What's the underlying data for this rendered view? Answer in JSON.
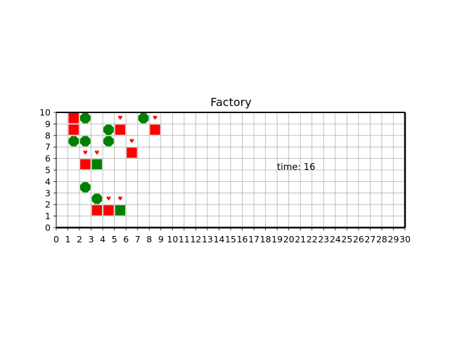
{
  "title": "Factory",
  "time_label": "time: 16",
  "grid": {
    "x_range": [
      0,
      30
    ],
    "y_range": [
      0,
      10
    ],
    "x_ticks": [
      "0",
      "1",
      "2",
      "3",
      "4",
      "5",
      "6",
      "7",
      "8",
      "9",
      "10",
      "11",
      "12",
      "13",
      "14",
      "15",
      "16",
      "17",
      "18",
      "19",
      "20",
      "21",
      "22",
      "23",
      "24",
      "25",
      "26",
      "27",
      "28",
      "29",
      "30"
    ],
    "y_ticks": [
      "0",
      "1",
      "2",
      "3",
      "4",
      "5",
      "6",
      "7",
      "8",
      "9",
      "10"
    ]
  },
  "colors": {
    "red_square": "#ff0000",
    "green_square": "#008000",
    "green_circle": "#008000",
    "heart": "#ff0000",
    "grid_line": "#b0b0b0",
    "frame": "#000000"
  },
  "red_squares": [
    {
      "x": 1.5,
      "y": 9.5
    },
    {
      "x": 1.5,
      "y": 8.5
    },
    {
      "x": 5.5,
      "y": 8.5
    },
    {
      "x": 8.5,
      "y": 8.5
    },
    {
      "x": 6.5,
      "y": 6.5
    },
    {
      "x": 2.5,
      "y": 5.5
    },
    {
      "x": 3.5,
      "y": 1.5
    },
    {
      "x": 4.5,
      "y": 1.5
    }
  ],
  "green_squares": [
    {
      "x": 3.5,
      "y": 5.5
    },
    {
      "x": 5.5,
      "y": 1.5
    }
  ],
  "green_circles": [
    {
      "x": 2.5,
      "y": 9.5
    },
    {
      "x": 7.5,
      "y": 9.5
    },
    {
      "x": 4.5,
      "y": 8.5
    },
    {
      "x": 1.5,
      "y": 7.5
    },
    {
      "x": 2.5,
      "y": 7.5
    },
    {
      "x": 4.5,
      "y": 7.5
    },
    {
      "x": 2.5,
      "y": 3.5
    },
    {
      "x": 3.5,
      "y": 2.5
    }
  ],
  "hearts": [
    {
      "x": 5.5,
      "y": 9.5
    },
    {
      "x": 8.5,
      "y": 9.5
    },
    {
      "x": 6.5,
      "y": 7.5
    },
    {
      "x": 2.5,
      "y": 6.5
    },
    {
      "x": 3.5,
      "y": 6.5
    },
    {
      "x": 4.5,
      "y": 2.5
    },
    {
      "x": 5.5,
      "y": 2.5
    }
  ]
}
